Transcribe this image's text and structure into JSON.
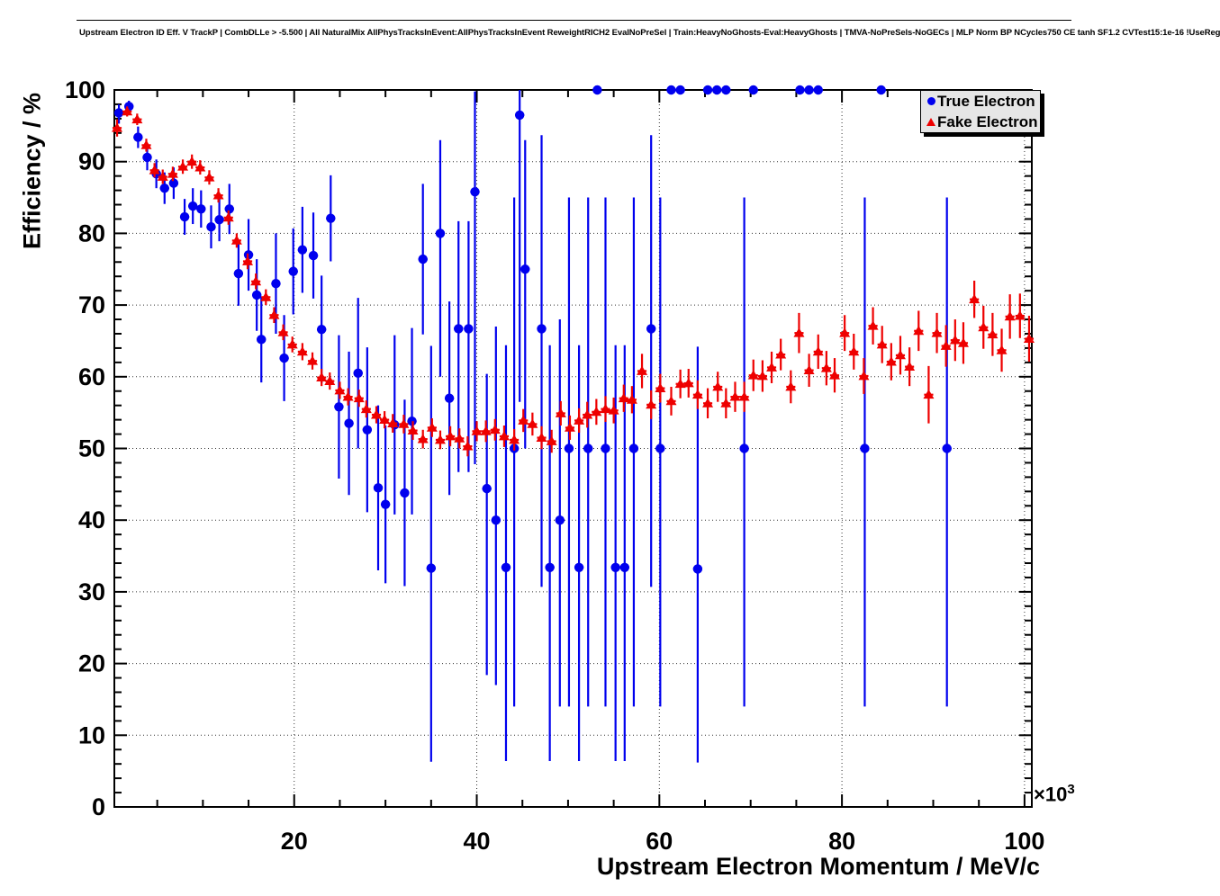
{
  "chart_data": {
    "type": "scatter",
    "title": "Upstream Electron ID Eff. V TrackP | CombDLLe > -5.500 | All NaturalMix AllPhysTracksInEvent:AllPhysTracksInEvent ReweightRICH2 EvalNoPreSel | Train:HeavyNoGhosts-Eval:HeavyGhosts | TMVA-NoPreSels-NoGECs | MLP Norm BP NCycles750 CE tanh SF1.2 CVTest15:1e-16 !UseReg",
    "xlabel": "Upstream Electron Momentum / MeV/c",
    "ylabel": "Efficiency / %",
    "x_mult_base": "×10",
    "x_mult_exp": "3",
    "xlim": [
      0.3,
      100.8
    ],
    "ylim": [
      0,
      100
    ],
    "x_major_ticks": [
      20,
      40,
      60,
      80,
      100
    ],
    "x_minor_step": 5,
    "y_major_ticks": [
      0,
      10,
      20,
      30,
      40,
      50,
      60,
      70,
      80,
      90,
      100
    ],
    "y_minor_step": 2,
    "grid": true,
    "grid_style": "dotted",
    "xerr_half_width": 0.5,
    "colors": {
      "true_electron": "#0000ee",
      "fake_electron": "#ee0000",
      "legend_bg": "#e6e6e6",
      "frame": "#000000"
    },
    "legend": {
      "position": "top-right",
      "entries": [
        {
          "label": "True Electron",
          "marker": "circle",
          "color": "#0000ee"
        },
        {
          "label": "Fake Electron",
          "marker": "triangle-up",
          "color": "#ee0000"
        }
      ]
    },
    "series": [
      {
        "name": "True Electron",
        "marker": "circle",
        "color": "#0000ee",
        "points": [
          [
            0.8,
            96.8,
            1.5,
            1.2
          ],
          [
            1.9,
            97.7,
            0.8,
            0.8
          ],
          [
            2.9,
            93.4,
            1.5,
            1.5
          ],
          [
            3.9,
            90.6,
            1.8,
            1.8
          ],
          [
            4.9,
            88.3,
            2,
            2
          ],
          [
            5.8,
            86.3,
            2.2,
            2.2
          ],
          [
            6.8,
            87.0,
            2.2,
            2.2
          ],
          [
            8.0,
            82.3,
            2.5,
            2.5
          ],
          [
            8.9,
            83.8,
            2.5,
            2.5
          ],
          [
            9.8,
            83.4,
            2.6,
            2.6
          ],
          [
            10.9,
            80.9,
            3,
            3
          ],
          [
            11.8,
            81.9,
            3,
            3
          ],
          [
            12.9,
            83.4,
            3.5,
            3.5
          ],
          [
            13.9,
            74.4,
            4.5,
            4.5
          ],
          [
            15.0,
            77.0,
            5,
            5
          ],
          [
            15.9,
            71.4,
            5,
            5
          ],
          [
            16.4,
            65.2,
            6,
            6
          ],
          [
            18.0,
            73.0,
            7,
            7
          ],
          [
            18.9,
            62.6,
            6,
            6
          ],
          [
            19.9,
            74.7,
            6,
            6
          ],
          [
            20.9,
            77.7,
            6,
            6
          ],
          [
            22.1,
            76.9,
            6,
            6
          ],
          [
            23.0,
            66.6,
            7.5,
            7.5
          ],
          [
            24.0,
            82.1,
            6,
            6
          ],
          [
            24.9,
            55.8,
            10,
            10
          ],
          [
            26.0,
            53.5,
            10,
            10
          ],
          [
            27.0,
            60.5,
            10.5,
            10.5
          ],
          [
            28.0,
            52.6,
            11.5,
            11.5
          ],
          [
            29.2,
            44.5,
            11.5,
            11.5
          ],
          [
            30.0,
            42.2,
            11,
            11
          ],
          [
            31.0,
            53.3,
            12.5,
            12.5
          ],
          [
            32.1,
            43.8,
            13,
            13
          ],
          [
            32.9,
            53.8,
            13,
            13
          ],
          [
            34.1,
            76.4,
            10.5,
            10.5
          ],
          [
            35.0,
            33.3,
            27,
            31
          ],
          [
            36.0,
            80.0,
            20,
            13
          ],
          [
            37.0,
            57.0,
            13.5,
            13.5
          ],
          [
            38.0,
            66.7,
            20,
            15
          ],
          [
            39.1,
            66.7,
            20,
            15
          ],
          [
            39.8,
            85.8,
            38,
            14
          ],
          [
            41.1,
            44.4,
            26,
            16
          ],
          [
            42.1,
            40.0,
            23,
            27
          ],
          [
            43.2,
            33.4,
            27,
            31
          ],
          [
            44.1,
            50.0,
            36,
            35
          ],
          [
            44.7,
            96.5,
            40,
            3.5
          ],
          [
            45.3,
            75.0,
            25,
            18
          ],
          [
            47.1,
            66.7,
            36,
            27
          ],
          [
            48.0,
            33.4,
            27,
            31
          ],
          [
            49.1,
            40.0,
            26,
            28
          ],
          [
            50.1,
            50.0,
            36,
            35
          ],
          [
            51.2,
            33.4,
            27,
            31
          ],
          [
            52.2,
            50.0,
            36,
            35
          ],
          [
            53.2,
            100,
            0,
            0
          ],
          [
            54.1,
            50.0,
            36,
            35
          ],
          [
            55.2,
            33.4,
            27,
            31
          ],
          [
            56.2,
            33.4,
            27,
            31
          ],
          [
            57.2,
            50.0,
            36,
            35
          ],
          [
            59.1,
            66.7,
            36,
            27
          ],
          [
            60.1,
            50.0,
            36,
            35
          ],
          [
            61.3,
            100,
            0,
            0
          ],
          [
            62.3,
            100,
            0,
            0
          ],
          [
            64.2,
            33.2,
            27,
            31
          ],
          [
            65.3,
            100,
            0,
            0
          ],
          [
            66.3,
            100,
            0,
            0
          ],
          [
            67.3,
            100,
            0,
            0
          ],
          [
            69.3,
            50.0,
            36,
            35
          ],
          [
            70.3,
            100,
            0,
            0
          ],
          [
            75.4,
            100,
            0,
            0
          ],
          [
            76.4,
            100,
            0,
            0
          ],
          [
            77.4,
            100,
            0,
            0
          ],
          [
            82.5,
            50.0,
            36,
            35
          ],
          [
            84.3,
            100,
            0,
            0
          ],
          [
            91.5,
            50.0,
            36,
            35
          ]
        ]
      },
      {
        "name": "Fake Electron",
        "marker": "triangle-up",
        "color": "#ee0000",
        "points": [
          [
            0.6,
            94.7,
            1.2
          ],
          [
            1.7,
            97.0,
            0.7
          ],
          [
            2.8,
            95.9,
            0.8
          ],
          [
            3.8,
            92.3,
            0.9
          ],
          [
            4.7,
            88.8,
            1.0
          ],
          [
            5.6,
            87.9,
            1.0
          ],
          [
            6.7,
            88.3,
            1.0
          ],
          [
            7.8,
            89.3,
            1.0
          ],
          [
            8.8,
            90.0,
            1.0
          ],
          [
            9.7,
            89.2,
            1.0
          ],
          [
            10.7,
            87.8,
            1.0
          ],
          [
            11.7,
            85.3,
            1.0
          ],
          [
            12.8,
            82.2,
            1.0
          ],
          [
            13.7,
            79.0,
            1.0
          ],
          [
            14.9,
            76.1,
            1.1
          ],
          [
            15.8,
            73.3,
            1.1
          ],
          [
            16.9,
            71.1,
            1.1
          ],
          [
            17.8,
            68.6,
            1.1
          ],
          [
            18.8,
            66.2,
            1.1
          ],
          [
            19.8,
            64.5,
            1.1
          ],
          [
            20.9,
            63.5,
            1.2
          ],
          [
            22.0,
            62.2,
            1.2
          ],
          [
            23.0,
            59.9,
            1.2
          ],
          [
            23.9,
            59.4,
            1.2
          ],
          [
            25.0,
            58.1,
            1.2
          ],
          [
            25.9,
            57.2,
            1.2
          ],
          [
            27.1,
            57.0,
            1.2
          ],
          [
            27.9,
            55.5,
            1.2
          ],
          [
            29.0,
            54.7,
            1.2
          ],
          [
            29.9,
            54.0,
            1.2
          ],
          [
            30.8,
            53.5,
            1.3
          ],
          [
            32.0,
            53.4,
            1.3
          ],
          [
            33.0,
            52.5,
            1.3
          ],
          [
            34.1,
            51.3,
            1.3
          ],
          [
            35.1,
            52.9,
            1.3
          ],
          [
            36.0,
            51.2,
            1.3
          ],
          [
            37.1,
            51.7,
            1.4
          ],
          [
            38.1,
            51.4,
            1.4
          ],
          [
            39.0,
            50.3,
            1.4
          ],
          [
            40.0,
            52.4,
            1.4
          ],
          [
            41.0,
            52.4,
            1.5
          ],
          [
            42.0,
            52.6,
            1.5
          ],
          [
            43.0,
            51.7,
            1.5
          ],
          [
            44.1,
            51.2,
            1.5
          ],
          [
            45.1,
            53.9,
            1.6
          ],
          [
            46.1,
            53.4,
            1.6
          ],
          [
            47.1,
            51.5,
            1.6
          ],
          [
            48.2,
            51.0,
            1.6
          ],
          [
            49.2,
            54.9,
            1.7
          ],
          [
            50.2,
            52.9,
            1.7
          ],
          [
            51.2,
            53.9,
            1.7
          ],
          [
            52.1,
            54.7,
            1.8
          ],
          [
            53.1,
            55.1,
            1.8
          ],
          [
            54.1,
            55.5,
            1.8
          ],
          [
            55.0,
            55.3,
            1.8
          ],
          [
            56.1,
            57.0,
            1.9
          ],
          [
            57.0,
            56.8,
            1.9
          ],
          [
            58.1,
            60.8,
            2.4
          ],
          [
            59.1,
            56.1,
            2.0
          ],
          [
            60.1,
            58.4,
            2.0
          ],
          [
            61.3,
            56.6,
            2.0
          ],
          [
            62.3,
            59.0,
            2.0
          ],
          [
            63.2,
            59.1,
            2.0
          ],
          [
            64.2,
            57.5,
            2.0
          ],
          [
            65.3,
            56.3,
            2.1
          ],
          [
            66.4,
            58.6,
            2.1
          ],
          [
            67.3,
            56.3,
            2.1
          ],
          [
            68.3,
            57.2,
            2.1
          ],
          [
            69.3,
            57.2,
            2.1
          ],
          [
            70.3,
            60.2,
            2.2
          ],
          [
            71.3,
            60.1,
            2.2
          ],
          [
            72.3,
            61.3,
            2.2
          ],
          [
            73.3,
            63.1,
            2.2
          ],
          [
            74.4,
            58.6,
            2.3
          ],
          [
            75.3,
            66.1,
            2.8
          ],
          [
            76.4,
            60.9,
            2.3
          ],
          [
            77.4,
            63.5,
            2.4
          ],
          [
            78.3,
            61.2,
            2.4
          ],
          [
            79.2,
            60.2,
            2.4
          ],
          [
            80.3,
            66.1,
            2.5
          ],
          [
            81.3,
            63.5,
            2.5
          ],
          [
            82.4,
            60.1,
            2.5
          ],
          [
            83.4,
            67.1,
            2.6
          ],
          [
            84.4,
            64.5,
            2.6
          ],
          [
            85.4,
            62.1,
            2.6
          ],
          [
            86.4,
            63.0,
            2.7
          ],
          [
            87.4,
            61.4,
            2.7
          ],
          [
            88.4,
            66.4,
            2.8
          ],
          [
            89.5,
            57.5,
            4.0
          ],
          [
            90.4,
            66.1,
            2.8
          ],
          [
            91.4,
            64.3,
            2.9
          ],
          [
            92.4,
            65.1,
            2.9
          ],
          [
            93.3,
            64.7,
            2.9
          ],
          [
            94.5,
            70.8,
            2.6
          ],
          [
            95.5,
            66.9,
            3.0
          ],
          [
            96.5,
            65.9,
            3.0
          ],
          [
            97.5,
            63.7,
            3.0
          ],
          [
            98.4,
            68.4,
            3.1
          ],
          [
            99.5,
            68.5,
            3.1
          ],
          [
            100.5,
            65.3,
            3.2
          ]
        ]
      }
    ]
  }
}
